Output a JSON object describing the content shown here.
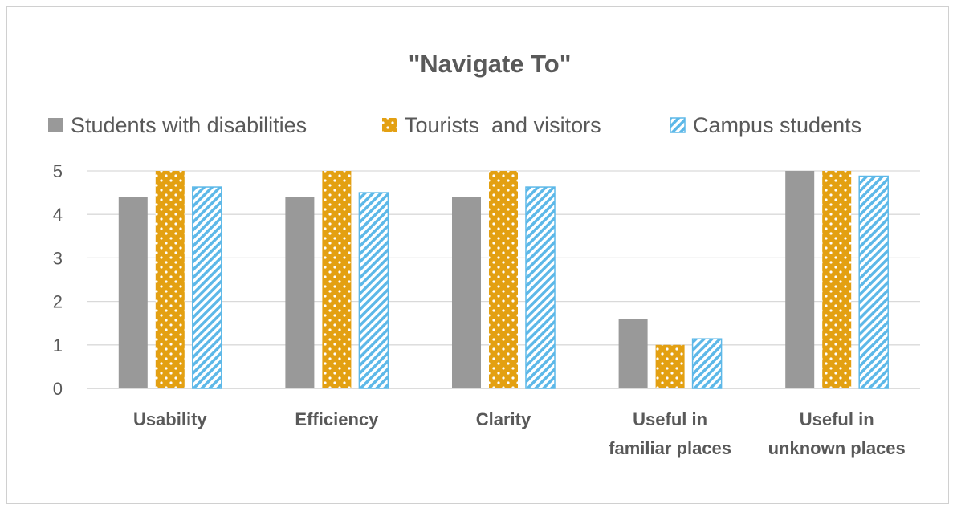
{
  "chart_data": {
    "type": "bar",
    "title": "\"Navigate To\"",
    "xlabel": "",
    "ylabel": "",
    "ylim": [
      0,
      5
    ],
    "yticks": [
      0,
      1,
      2,
      3,
      4,
      5
    ],
    "grid": true,
    "legend_position": "top",
    "categories": [
      [
        "Usability"
      ],
      [
        "Efficiency"
      ],
      [
        "Clarity"
      ],
      [
        "Useful in",
        "familiar places"
      ],
      [
        "Useful in",
        "unknown places"
      ]
    ],
    "series": [
      {
        "name": "Students with disabilities",
        "pattern": "solid",
        "color": "#999999",
        "values": [
          4.4,
          4.4,
          4.4,
          1.6,
          5.0
        ]
      },
      {
        "name": "Tourists  and visitors",
        "pattern": "dots",
        "color": "#E3A012",
        "values": [
          5.0,
          5.0,
          5.0,
          1.0,
          5.0
        ]
      },
      {
        "name": "Campus students",
        "pattern": "diagonal",
        "color": "#5DB8E8",
        "values": [
          4.63,
          4.5,
          4.63,
          1.14,
          4.88
        ]
      }
    ]
  }
}
